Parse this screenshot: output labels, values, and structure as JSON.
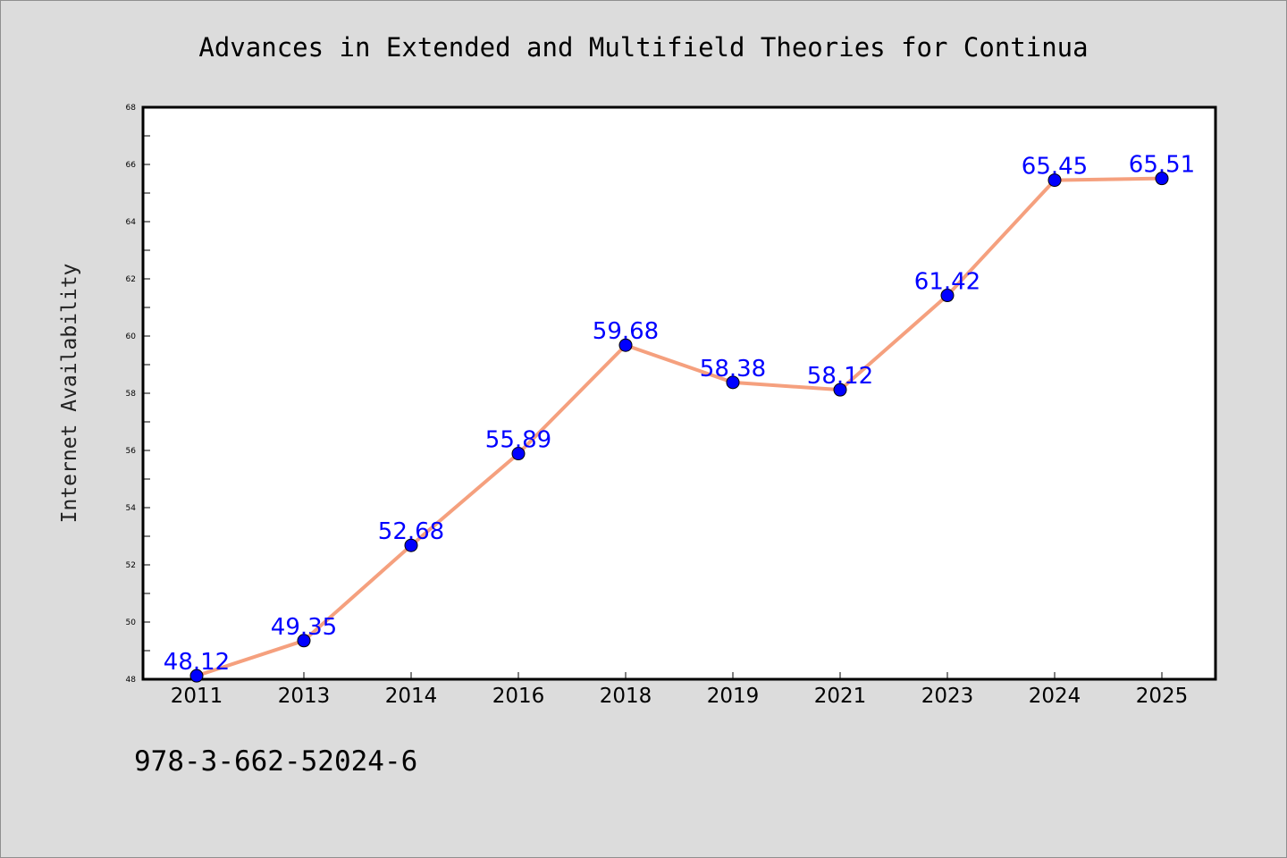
{
  "chart_data": {
    "type": "line",
    "title": "Advances in Extended and Multifield Theories for Continua",
    "ylabel": "Internet Availability",
    "xlabel": "",
    "categories": [
      "2011",
      "2013",
      "2014",
      "2016",
      "2018",
      "2019",
      "2021",
      "2023",
      "2024",
      "2025"
    ],
    "series": [
      {
        "values": [
          48.12,
          49.35,
          52.68,
          55.89,
          59.68,
          58.38,
          58.12,
          61.42,
          65.45,
          65.51
        ],
        "data_labels": [
          "48.12",
          "49.35",
          "52.68",
          "55.89",
          "59.68",
          "58.38",
          "58.12",
          "61.42",
          "65.45",
          "65.51"
        ],
        "line_color": "#f5a07e",
        "marker_color": "#0000ff"
      }
    ],
    "ylim": [
      48,
      68
    ],
    "yticks": [
      "48",
      "50",
      "52",
      "54",
      "56",
      "58",
      "60",
      "62",
      "64",
      "66",
      "68"
    ],
    "grid": false,
    "legend": "none"
  },
  "footer": {
    "isbn": "978-3-662-52024-6"
  },
  "colors": {
    "background": "#dcdcdc",
    "plot_background": "#ffffff",
    "line": "#f5a07e",
    "marker": "#0000ff",
    "data_label": "#0000ff"
  }
}
